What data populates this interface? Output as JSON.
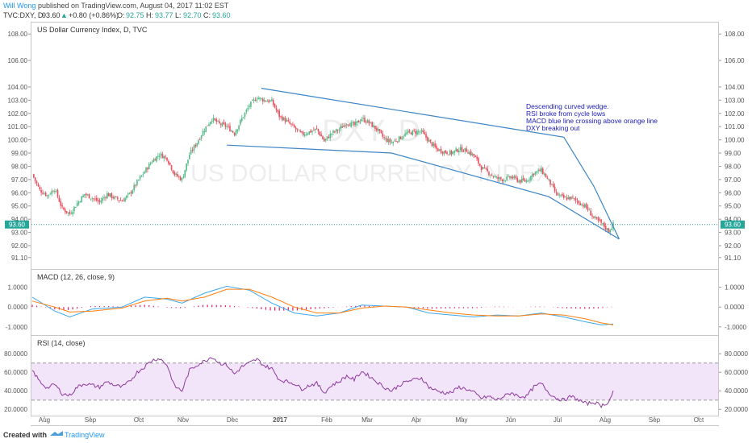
{
  "header": {
    "author": "Will Wong",
    "published_text": "published on TradingView.com, August 04, 2017 11:02 EST",
    "symbol_line": "TVC:DXY, D",
    "last": "93.60",
    "change": "+0.80 (+0.86%)",
    "open_label": "O:",
    "open": "92.75",
    "high_label": "H:",
    "high": "93.77",
    "low_label": "L:",
    "low": "92.70",
    "close_label": "C:",
    "close": "93.60"
  },
  "footer": {
    "created_with": "Created with",
    "brand": "TradingView"
  },
  "colors": {
    "up": "#53b987",
    "down": "#eb4d5c",
    "wedge": "#3d85c6",
    "macd": "#3da7ec",
    "signal": "#ff7f0e",
    "hist": "#e91e63",
    "rsi": "#8b3a9e",
    "rsi_band": "#f3e5f9",
    "annotation": "#1a1ab8",
    "author": "#2196f3"
  },
  "chart_data": [
    {
      "type": "candlestick",
      "title": "US Dollar Currency Index, D, TVC",
      "watermark_symbol": "DXY, D",
      "watermark_name": "US DOLLAR CURRENCY INDEX",
      "y_ticks": [
        "108.00",
        "106.00",
        "104.00",
        "103.00",
        "102.00",
        "101.00",
        "100.00",
        "99.00",
        "98.00",
        "97.00",
        "96.00",
        "95.00",
        "94.00",
        "93.00",
        "92.00",
        "91.10"
      ],
      "last_price_label": "93.60",
      "last_price": 93.6,
      "x_ticks": [
        "Aug",
        "Sep",
        "Oct",
        "Nov",
        "Dec",
        "2017",
        "Feb",
        "Mar",
        "Apr",
        "May",
        "Jun",
        "Jul",
        "Aug",
        "Sep",
        "Oct"
      ],
      "path_points": [
        [
          0,
          97.4
        ],
        [
          5,
          96.2
        ],
        [
          10,
          95.8
        ],
        [
          15,
          96.3
        ],
        [
          20,
          94.8
        ],
        [
          25,
          94.4
        ],
        [
          30,
          95.2
        ],
        [
          35,
          95.9
        ],
        [
          40,
          95.6
        ],
        [
          45,
          95.3
        ],
        [
          50,
          95.9
        ],
        [
          55,
          95.6
        ],
        [
          60,
          95.4
        ],
        [
          65,
          95.9
        ],
        [
          70,
          96.8
        ],
        [
          75,
          97.6
        ],
        [
          80,
          98.4
        ],
        [
          85,
          98.9
        ],
        [
          90,
          98.6
        ],
        [
          95,
          97.4
        ],
        [
          100,
          97.0
        ],
        [
          105,
          98.9
        ],
        [
          110,
          99.8
        ],
        [
          115,
          100.8
        ],
        [
          120,
          101.6
        ],
        [
          125,
          101.2
        ],
        [
          130,
          101.0
        ],
        [
          135,
          100.5
        ],
        [
          140,
          101.6
        ],
        [
          145,
          102.6
        ],
        [
          150,
          103.2
        ],
        [
          155,
          103.0
        ],
        [
          160,
          102.9
        ],
        [
          165,
          101.8
        ],
        [
          170,
          101.4
        ],
        [
          175,
          100.9
        ],
        [
          180,
          100.4
        ],
        [
          185,
          100.6
        ],
        [
          190,
          100.8
        ],
        [
          195,
          99.9
        ],
        [
          200,
          100.5
        ],
        [
          205,
          100.8
        ],
        [
          210,
          101.3
        ],
        [
          215,
          101.1
        ],
        [
          220,
          101.6
        ],
        [
          225,
          101.3
        ],
        [
          230,
          100.8
        ],
        [
          235,
          100.1
        ],
        [
          240,
          99.8
        ],
        [
          245,
          100.1
        ],
        [
          250,
          100.5
        ],
        [
          255,
          100.6
        ],
        [
          260,
          100.6
        ],
        [
          265,
          99.9
        ],
        [
          270,
          99.3
        ],
        [
          275,
          99.1
        ],
        [
          280,
          99.0
        ],
        [
          285,
          99.3
        ],
        [
          290,
          99.2
        ],
        [
          295,
          98.8
        ],
        [
          300,
          97.9
        ],
        [
          305,
          97.5
        ],
        [
          310,
          97.1
        ],
        [
          315,
          97.0
        ],
        [
          320,
          97.2
        ],
        [
          325,
          96.9
        ],
        [
          330,
          96.9
        ],
        [
          335,
          97.5
        ],
        [
          340,
          97.7
        ],
        [
          345,
          96.9
        ],
        [
          350,
          95.9
        ],
        [
          355,
          95.6
        ],
        [
          360,
          95.6
        ],
        [
          365,
          95.3
        ],
        [
          370,
          94.9
        ],
        [
          375,
          94.1
        ],
        [
          380,
          93.7
        ],
        [
          385,
          93.1
        ],
        [
          388,
          93.6
        ]
      ],
      "trendlines": [
        {
          "name": "upper",
          "points": [
            [
              153,
              103.9
            ],
            [
              355,
              100.2
            ],
            [
              375,
              96.5
            ],
            [
              392,
              92.5
            ]
          ]
        },
        {
          "name": "lower",
          "points": [
            [
              130,
              99.6
            ],
            [
              240,
              99.0
            ],
            [
              345,
              95.7
            ],
            [
              392,
              92.5
            ]
          ]
        }
      ],
      "annotation": [
        "Descending curved wedge.",
        "RSI broke from cycle lows",
        "MACD blue line crossing above orange line",
        "DXY breaking out"
      ]
    },
    {
      "type": "line",
      "title": "MACD (12, 26, close, 9)",
      "y_ticks": [
        "1.0000",
        "0.0000",
        "-1.0000"
      ],
      "series": [
        {
          "name": "MACD",
          "points": [
            [
              0,
              0.5
            ],
            [
              15,
              -0.2
            ],
            [
              25,
              -0.5
            ],
            [
              40,
              -0.1
            ],
            [
              60,
              0.0
            ],
            [
              75,
              0.5
            ],
            [
              90,
              0.4
            ],
            [
              100,
              0.2
            ],
            [
              115,
              0.7
            ],
            [
              130,
              1.05
            ],
            [
              145,
              0.85
            ],
            [
              160,
              0.2
            ],
            [
              175,
              -0.3
            ],
            [
              190,
              -0.45
            ],
            [
              205,
              -0.3
            ],
            [
              220,
              0.1
            ],
            [
              235,
              0.05
            ],
            [
              250,
              0.0
            ],
            [
              265,
              -0.3
            ],
            [
              280,
              -0.4
            ],
            [
              295,
              -0.5
            ],
            [
              310,
              -0.4
            ],
            [
              325,
              -0.45
            ],
            [
              340,
              -0.3
            ],
            [
              355,
              -0.5
            ],
            [
              370,
              -0.75
            ],
            [
              380,
              -0.9
            ],
            [
              388,
              -0.85
            ]
          ]
        },
        {
          "name": "Signal",
          "points": [
            [
              0,
              0.3
            ],
            [
              15,
              0.0
            ],
            [
              25,
              -0.25
            ],
            [
              40,
              -0.2
            ],
            [
              60,
              -0.05
            ],
            [
              75,
              0.3
            ],
            [
              90,
              0.45
            ],
            [
              100,
              0.3
            ],
            [
              115,
              0.5
            ],
            [
              130,
              0.9
            ],
            [
              145,
              0.9
            ],
            [
              160,
              0.5
            ],
            [
              175,
              0.0
            ],
            [
              190,
              -0.3
            ],
            [
              205,
              -0.3
            ],
            [
              220,
              -0.05
            ],
            [
              235,
              0.05
            ],
            [
              250,
              0.0
            ],
            [
              265,
              -0.15
            ],
            [
              280,
              -0.3
            ],
            [
              295,
              -0.4
            ],
            [
              310,
              -0.45
            ],
            [
              325,
              -0.45
            ],
            [
              340,
              -0.35
            ],
            [
              355,
              -0.4
            ],
            [
              370,
              -0.6
            ],
            [
              380,
              -0.8
            ],
            [
              388,
              -0.9
            ]
          ]
        }
      ]
    },
    {
      "type": "line",
      "title": "RSI (14, close)",
      "y_ticks": [
        "80.0000",
        "60.0000",
        "40.0000",
        "20.0000"
      ],
      "band": [
        30,
        70
      ],
      "points": [
        [
          0,
          62
        ],
        [
          5,
          50
        ],
        [
          10,
          43
        ],
        [
          15,
          47
        ],
        [
          20,
          37
        ],
        [
          25,
          35
        ],
        [
          30,
          44
        ],
        [
          35,
          48
        ],
        [
          40,
          46
        ],
        [
          45,
          44
        ],
        [
          50,
          50
        ],
        [
          55,
          46
        ],
        [
          60,
          44
        ],
        [
          65,
          50
        ],
        [
          70,
          60
        ],
        [
          75,
          66
        ],
        [
          80,
          73
        ],
        [
          85,
          75
        ],
        [
          90,
          68
        ],
        [
          95,
          45
        ],
        [
          100,
          40
        ],
        [
          105,
          62
        ],
        [
          110,
          68
        ],
        [
          115,
          72
        ],
        [
          120,
          77
        ],
        [
          125,
          70
        ],
        [
          130,
          68
        ],
        [
          135,
          58
        ],
        [
          140,
          66
        ],
        [
          145,
          70
        ],
        [
          150,
          74
        ],
        [
          155,
          67
        ],
        [
          160,
          64
        ],
        [
          165,
          52
        ],
        [
          170,
          50
        ],
        [
          175,
          48
        ],
        [
          180,
          42
        ],
        [
          185,
          46
        ],
        [
          190,
          48
        ],
        [
          195,
          38
        ],
        [
          200,
          46
        ],
        [
          205,
          50
        ],
        [
          210,
          56
        ],
        [
          215,
          52
        ],
        [
          220,
          61
        ],
        [
          225,
          56
        ],
        [
          230,
          50
        ],
        [
          235,
          44
        ],
        [
          240,
          40
        ],
        [
          245,
          46
        ],
        [
          250,
          50
        ],
        [
          255,
          52
        ],
        [
          260,
          54
        ],
        [
          265,
          44
        ],
        [
          270,
          40
        ],
        [
          275,
          38
        ],
        [
          280,
          38
        ],
        [
          285,
          44
        ],
        [
          290,
          42
        ],
        [
          295,
          38
        ],
        [
          300,
          32
        ],
        [
          305,
          34
        ],
        [
          310,
          30
        ],
        [
          315,
          34
        ],
        [
          320,
          38
        ],
        [
          325,
          34
        ],
        [
          330,
          34
        ],
        [
          335,
          44
        ],
        [
          340,
          48
        ],
        [
          345,
          38
        ],
        [
          350,
          32
        ],
        [
          355,
          30
        ],
        [
          360,
          34
        ],
        [
          365,
          30
        ],
        [
          370,
          26
        ],
        [
          375,
          28
        ],
        [
          380,
          24
        ],
        [
          385,
          28
        ],
        [
          388,
          39
        ]
      ]
    }
  ]
}
